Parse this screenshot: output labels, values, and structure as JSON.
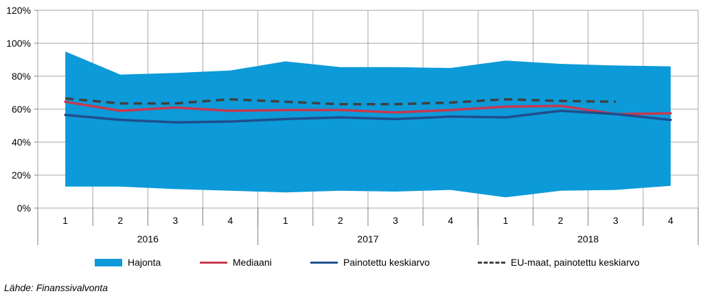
{
  "chart_data": {
    "type": "area",
    "y_axis": {
      "min": 0,
      "max": 120,
      "step": 20,
      "unit": "%",
      "tick_labels": [
        "0%",
        "20%",
        "40%",
        "60%",
        "80%",
        "100%",
        "120%"
      ]
    },
    "categories": [
      "1",
      "2",
      "3",
      "4",
      "1",
      "2",
      "3",
      "4",
      "1",
      "2",
      "3",
      "4"
    ],
    "groups": [
      {
        "label": "2016",
        "count": 4
      },
      {
        "label": "2017",
        "count": 4
      },
      {
        "label": "2018",
        "count": 4
      }
    ],
    "range_band": {
      "name": "Hajonta",
      "color": "#0D9AD8",
      "upper": [
        95,
        81,
        82,
        83.5,
        89,
        85.5,
        85.5,
        85,
        89.5,
        87.5,
        86.5,
        86
      ],
      "lower": [
        13,
        13,
        11.5,
        10.5,
        9.5,
        10.5,
        10,
        11,
        6.5,
        10.5,
        11,
        13.5
      ]
    },
    "series": [
      {
        "name": "Mediaani",
        "color": "#C8384F",
        "style": "solid",
        "values": [
          64.5,
          59,
          61,
          59,
          59.5,
          59.5,
          58,
          59.5,
          61.5,
          62,
          57,
          57.5
        ]
      },
      {
        "name": "Painotettu keskiarvo",
        "color": "#1F4E8C",
        "style": "solid",
        "values": [
          56.5,
          53.5,
          52,
          52.5,
          54,
          55,
          54,
          55.5,
          55,
          59,
          57,
          53.5
        ]
      },
      {
        "name": "EU-maat, painotettu keskiarvo",
        "color": "#404040",
        "style": "dashed",
        "values": [
          66.5,
          63.5,
          63.5,
          66,
          64.5,
          63,
          63,
          64,
          66,
          65,
          64.5,
          null
        ]
      }
    ],
    "grid": true,
    "legend_position": "bottom"
  },
  "legend": {
    "band_label": "Hajonta",
    "median_label": "Mediaani",
    "weighted_label": "Painotettu keskiarvo",
    "eu_label": "EU-maat, painotettu keskiarvo"
  },
  "source": "Lähde: Finanssivalvonta"
}
